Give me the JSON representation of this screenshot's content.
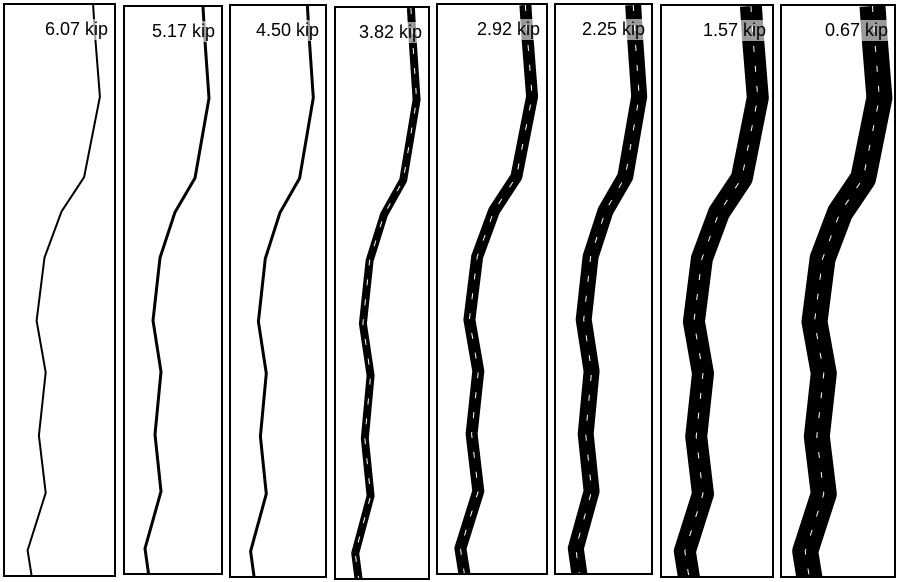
{
  "panels": [
    {
      "label": "6.07 kip"
    },
    {
      "label": "5.17 kip"
    },
    {
      "label": "4.50 kip"
    },
    {
      "label": "3.82 kip"
    },
    {
      "label": "2.92 kip"
    },
    {
      "label": "2.25 kip"
    },
    {
      "label": "1.57 kip"
    },
    {
      "label": "0.67 kip"
    }
  ]
}
